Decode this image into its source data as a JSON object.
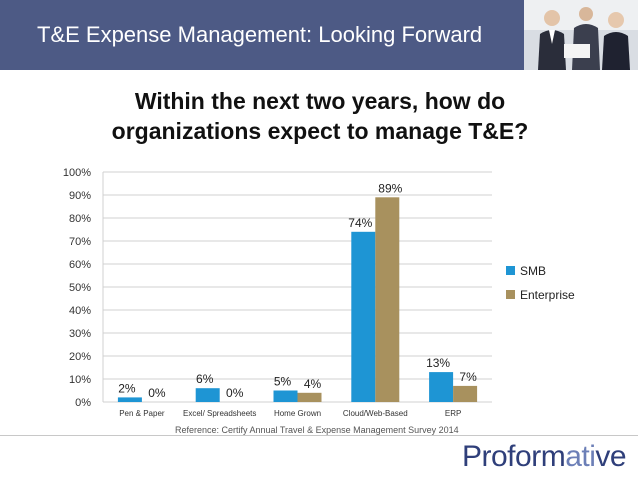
{
  "header": {
    "title": "T&E Expense Management: Looking Forward",
    "background": "#4d5a85",
    "photo_icon": "business-people-photo"
  },
  "question": {
    "line1": "Within the next two years, how do",
    "line2": "organizations expect to manage T&E?"
  },
  "chart_data": {
    "type": "bar",
    "categories": [
      "Pen & Paper",
      "Excel/ Spreadsheets",
      "Home Grown",
      "Cloud/Web-Based",
      "ERP"
    ],
    "series": [
      {
        "name": "SMB",
        "color": "#1e95d4",
        "values": [
          2,
          6,
          5,
          74,
          13
        ],
        "labels": [
          "2%",
          "6%",
          "5%",
          "74%",
          "13%"
        ]
      },
      {
        "name": "Enterprise",
        "color": "#a8915e",
        "values": [
          0,
          0,
          4,
          89,
          7
        ],
        "labels": [
          "0%",
          "0%",
          "4%",
          "89%",
          "7%"
        ]
      }
    ],
    "ylim": [
      0,
      100
    ],
    "yticks": [
      "0%",
      "10%",
      "20%",
      "30%",
      "40%",
      "50%",
      "60%",
      "70%",
      "80%",
      "90%",
      "100%"
    ],
    "grid": true,
    "legend": "right"
  },
  "reference": "Reference: Certify Annual Travel & Expense Management Survey 2014",
  "logo": {
    "part1": "Proform",
    "part2": "ati",
    "part3": "ve"
  }
}
